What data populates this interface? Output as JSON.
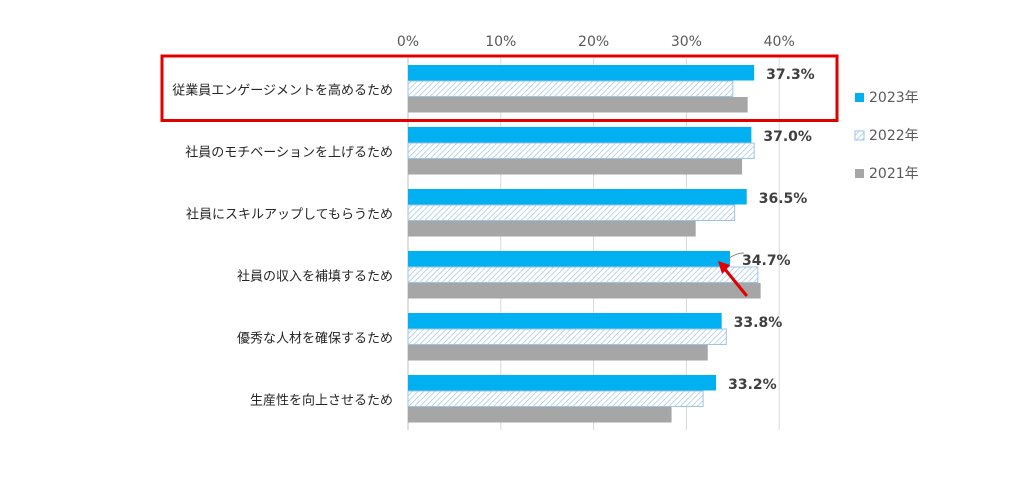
{
  "chart_data": {
    "type": "bar",
    "orientation": "horizontal",
    "categories": [
      "従業員エンゲージメントを高めるため",
      "社員のモチベーションを上げるため",
      "社員にスキルアップしてもらうため",
      "社員の収入を補填するため",
      "優秀な人材を確保するため",
      "生産性を向上させるため"
    ],
    "series": [
      {
        "name": "2023年",
        "values": [
          37.3,
          37.0,
          36.5,
          34.7,
          33.8,
          33.2
        ],
        "color": "#00B0F0",
        "pattern": "solid"
      },
      {
        "name": "2022年",
        "values": [
          35.0,
          37.3,
          35.2,
          37.7,
          34.3,
          31.8
        ],
        "color": "#9DC3E6",
        "pattern": "hatched"
      },
      {
        "name": "2021年",
        "values": [
          36.6,
          36.0,
          31.0,
          38.0,
          32.3,
          28.4
        ],
        "color": "#A6A6A6",
        "pattern": "solid"
      }
    ],
    "data_labels": [
      "37.3%",
      "37.0%",
      "36.5%",
      "34.7%",
      "33.8%",
      "33.2%"
    ],
    "x_ticks": [
      "0%",
      "10%",
      "20%",
      "30%",
      "40%"
    ],
    "xlim": [
      0,
      45
    ],
    "grid": true,
    "legend_position": "right",
    "highlighted_category_index": 0,
    "highlight_color": "#E00000",
    "arrow_category_index": 3,
    "arrow_color": "#E00000"
  }
}
